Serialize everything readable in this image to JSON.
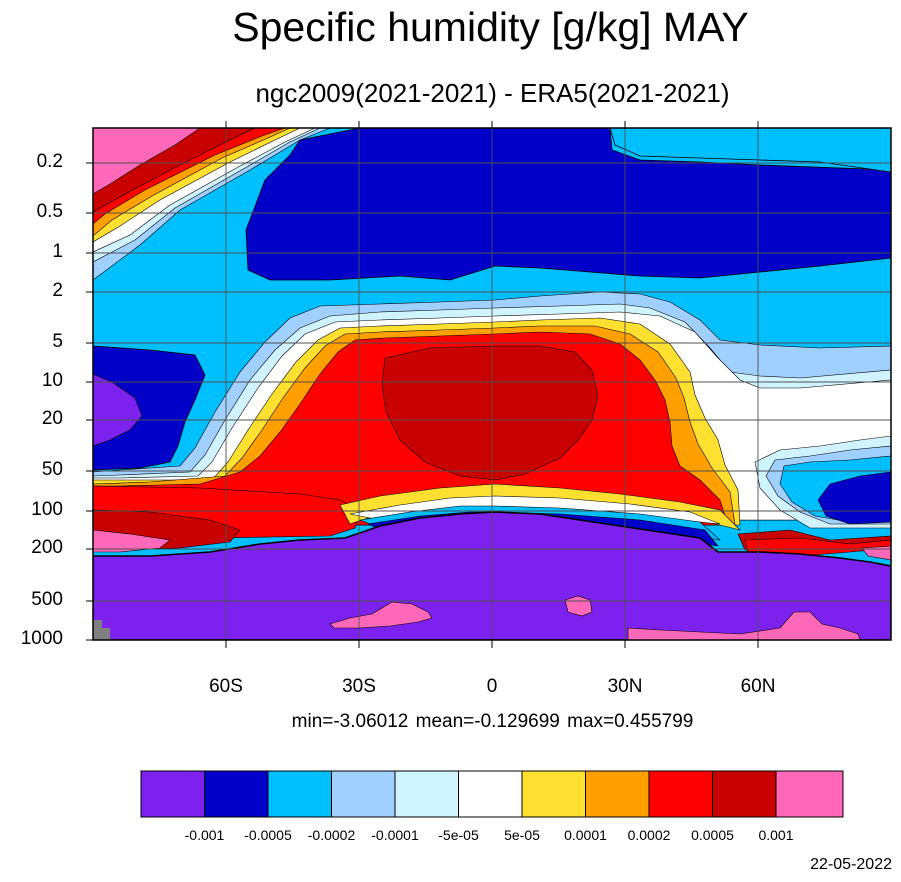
{
  "title": "Specific humidity [g/kg] MAY",
  "subtitle": "ngc2009(2021-2021) - ERA5(2021-2021)",
  "stats": "min=-3.06012   mean=-0.129699   max=0.455799",
  "date": "22-05-2022",
  "colors": {
    "lt_neg_0_001": "#7d22ee",
    "neg_0_001_to_neg_0_0005": "#0000c8",
    "neg_0_0005_to_neg_0_0002": "#00bfff",
    "neg_0_0002_to_neg_0_0001": "#a0d0ff",
    "neg_0_0001_to_neg_5e_05": "#d0f4ff",
    "neg_5e_05_to_5e_05": "#ffffff",
    "5e_05_to_0_0001": "#ffe030",
    "0_0001_to_0_0002": "#ffa000",
    "0_0002_to_0_0005": "#ff0000",
    "0_0005_to_0_001": "#c80000",
    "gt_0_001": "#ff68b8",
    "missing": "#808080"
  },
  "chart_data": {
    "type": "heatmap",
    "title": "Specific humidity [g/kg] MAY",
    "subtitle": "ngc2009(2021-2021) - ERA5(2021-2021)",
    "x_ticks": [
      "60S",
      "30S",
      "0",
      "30N",
      "60N"
    ],
    "x_tick_values": [
      -60,
      -30,
      0,
      30,
      60
    ],
    "xlim": [
      -90,
      90
    ],
    "y_ticks": [
      "0.2",
      "0.5",
      "1",
      "2",
      "5",
      "10",
      "20",
      "50",
      "100",
      "200",
      "500",
      "1000"
    ],
    "y_tick_values": [
      0.2,
      0.5,
      1,
      2,
      5,
      10,
      20,
      50,
      100,
      200,
      500,
      1000
    ],
    "ylim": [
      0.1,
      1000
    ],
    "y_scale": "log-reversed",
    "contour_levels": [
      "-0.001",
      "-0.0005",
      "-0.0002",
      "-0.0001",
      "-5e-05",
      "5e-05",
      "0.0001",
      "0.0002",
      "0.0005",
      "0.001"
    ],
    "legend_placement": "bottom-horizontal",
    "min": -3.06012,
    "mean": -0.129699,
    "max": 0.455799
  }
}
